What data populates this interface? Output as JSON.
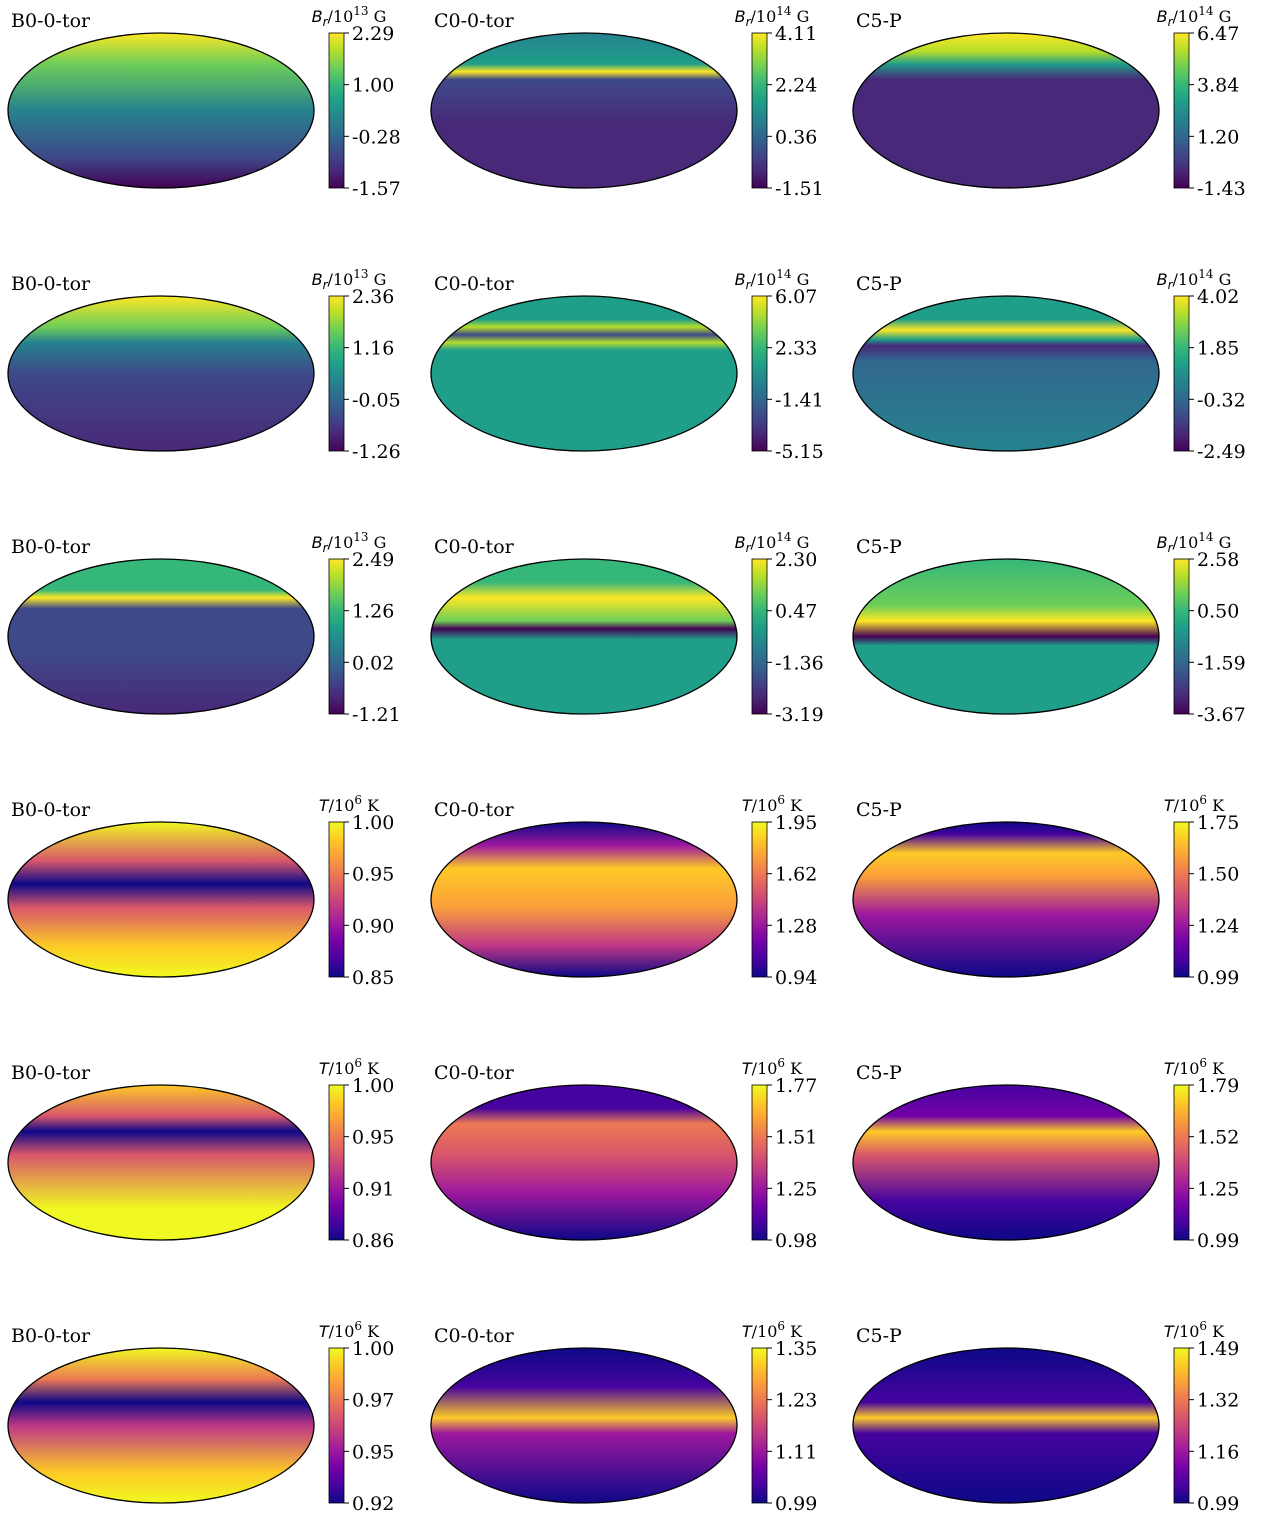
{
  "colors": {
    "viridis": [
      "#440154",
      "#482878",
      "#3e4989",
      "#31688e",
      "#26828e",
      "#1f9e89",
      "#35b779",
      "#6ece58",
      "#b5de2b",
      "#fde725"
    ],
    "plasma": [
      "#0d0887",
      "#46039f",
      "#7201a8",
      "#9c179e",
      "#bd3786",
      "#d8576b",
      "#ed7953",
      "#fb9f3a",
      "#fdca26",
      "#f0f921"
    ],
    "outline": "#000000"
  },
  "chart_data": [
    {
      "type": "heatmap",
      "projection": "mollweide",
      "title": "B0-0-tor",
      "colormap": "viridis",
      "colorbar": {
        "quantity": "B",
        "subscript": "r",
        "unit_base": "10",
        "exponent": "13",
        "unit": "G",
        "ticks": [
          "2.29",
          "1.00",
          "-0.28",
          "-1.57"
        ],
        "range": [
          -1.57,
          2.29
        ]
      }
    },
    {
      "type": "heatmap",
      "projection": "mollweide",
      "title": "C0-0-tor",
      "colormap": "viridis",
      "colorbar": {
        "quantity": "B",
        "subscript": "r",
        "unit_base": "10",
        "exponent": "14",
        "unit": "G",
        "ticks": [
          "4.11",
          "2.24",
          "0.36",
          "-1.51"
        ],
        "range": [
          -1.51,
          4.11
        ]
      }
    },
    {
      "type": "heatmap",
      "projection": "mollweide",
      "title": "C5-P",
      "colormap": "viridis",
      "colorbar": {
        "quantity": "B",
        "subscript": "r",
        "unit_base": "10",
        "exponent": "14",
        "unit": "G",
        "ticks": [
          "6.47",
          "3.84",
          "1.20",
          "-1.43"
        ],
        "range": [
          -1.43,
          6.47
        ]
      }
    },
    {
      "type": "heatmap",
      "projection": "mollweide",
      "title": "B0-0-tor",
      "colormap": "viridis",
      "colorbar": {
        "quantity": "B",
        "subscript": "r",
        "unit_base": "10",
        "exponent": "13",
        "unit": "G",
        "ticks": [
          "2.36",
          "1.16",
          "-0.05",
          "-1.26"
        ],
        "range": [
          -1.26,
          2.36
        ]
      }
    },
    {
      "type": "heatmap",
      "projection": "mollweide",
      "title": "C0-0-tor",
      "colormap": "viridis",
      "colorbar": {
        "quantity": "B",
        "subscript": "r",
        "unit_base": "10",
        "exponent": "14",
        "unit": "G",
        "ticks": [
          "6.07",
          "2.33",
          "-1.41",
          "-5.15"
        ],
        "range": [
          -5.15,
          6.07
        ]
      }
    },
    {
      "type": "heatmap",
      "projection": "mollweide",
      "title": "C5-P",
      "colormap": "viridis",
      "colorbar": {
        "quantity": "B",
        "subscript": "r",
        "unit_base": "10",
        "exponent": "14",
        "unit": "G",
        "ticks": [
          "4.02",
          "1.85",
          "-0.32",
          "-2.49"
        ],
        "range": [
          -2.49,
          4.02
        ]
      }
    },
    {
      "type": "heatmap",
      "projection": "mollweide",
      "title": "B0-0-tor",
      "colormap": "viridis",
      "colorbar": {
        "quantity": "B",
        "subscript": "r",
        "unit_base": "10",
        "exponent": "13",
        "unit": "G",
        "ticks": [
          "2.49",
          "1.26",
          "0.02",
          "-1.21"
        ],
        "range": [
          -1.21,
          2.49
        ]
      }
    },
    {
      "type": "heatmap",
      "projection": "mollweide",
      "title": "C0-0-tor",
      "colormap": "viridis",
      "colorbar": {
        "quantity": "B",
        "subscript": "r",
        "unit_base": "10",
        "exponent": "14",
        "unit": "G",
        "ticks": [
          "2.30",
          "0.47",
          "-1.36",
          "-3.19"
        ],
        "range": [
          -3.19,
          2.3
        ]
      }
    },
    {
      "type": "heatmap",
      "projection": "mollweide",
      "title": "C5-P",
      "colormap": "viridis",
      "colorbar": {
        "quantity": "B",
        "subscript": "r",
        "unit_base": "10",
        "exponent": "14",
        "unit": "G",
        "ticks": [
          "2.58",
          "0.50",
          "-1.59",
          "-3.67"
        ],
        "range": [
          -3.67,
          2.58
        ]
      }
    },
    {
      "type": "heatmap",
      "projection": "mollweide",
      "title": "B0-0-tor",
      "colormap": "plasma",
      "colorbar": {
        "quantity": "T",
        "subscript": "",
        "unit_base": "10",
        "exponent": "6",
        "unit": "K",
        "ticks": [
          "1.00",
          "0.95",
          "0.90",
          "0.85"
        ],
        "range": [
          0.85,
          1.0
        ]
      }
    },
    {
      "type": "heatmap",
      "projection": "mollweide",
      "title": "C0-0-tor",
      "colormap": "plasma",
      "colorbar": {
        "quantity": "T",
        "subscript": "",
        "unit_base": "10",
        "exponent": "6",
        "unit": "K",
        "ticks": [
          "1.95",
          "1.62",
          "1.28",
          "0.94"
        ],
        "range": [
          0.94,
          1.95
        ]
      }
    },
    {
      "type": "heatmap",
      "projection": "mollweide",
      "title": "C5-P",
      "colormap": "plasma",
      "colorbar": {
        "quantity": "T",
        "subscript": "",
        "unit_base": "10",
        "exponent": "6",
        "unit": "K",
        "ticks": [
          "1.75",
          "1.50",
          "1.24",
          "0.99"
        ],
        "range": [
          0.99,
          1.75
        ]
      }
    },
    {
      "type": "heatmap",
      "projection": "mollweide",
      "title": "B0-0-tor",
      "colormap": "plasma",
      "colorbar": {
        "quantity": "T",
        "subscript": "",
        "unit_base": "10",
        "exponent": "6",
        "unit": "K",
        "ticks": [
          "1.00",
          "0.95",
          "0.91",
          "0.86"
        ],
        "range": [
          0.86,
          1.0
        ]
      }
    },
    {
      "type": "heatmap",
      "projection": "mollweide",
      "title": "C0-0-tor",
      "colormap": "plasma",
      "colorbar": {
        "quantity": "T",
        "subscript": "",
        "unit_base": "10",
        "exponent": "6",
        "unit": "K",
        "ticks": [
          "1.77",
          "1.51",
          "1.25",
          "0.98"
        ],
        "range": [
          0.98,
          1.77
        ]
      }
    },
    {
      "type": "heatmap",
      "projection": "mollweide",
      "title": "C5-P",
      "colormap": "plasma",
      "colorbar": {
        "quantity": "T",
        "subscript": "",
        "unit_base": "10",
        "exponent": "6",
        "unit": "K",
        "ticks": [
          "1.79",
          "1.52",
          "1.25",
          "0.99"
        ],
        "range": [
          0.99,
          1.79
        ]
      }
    },
    {
      "type": "heatmap",
      "projection": "mollweide",
      "title": "B0-0-tor",
      "colormap": "plasma",
      "colorbar": {
        "quantity": "T",
        "subscript": "",
        "unit_base": "10",
        "exponent": "6",
        "unit": "K",
        "ticks": [
          "1.00",
          "0.97",
          "0.95",
          "0.92"
        ],
        "range": [
          0.92,
          1.0
        ]
      }
    },
    {
      "type": "heatmap",
      "projection": "mollweide",
      "title": "C0-0-tor",
      "colormap": "plasma",
      "colorbar": {
        "quantity": "T",
        "subscript": "",
        "unit_base": "10",
        "exponent": "6",
        "unit": "K",
        "ticks": [
          "1.35",
          "1.23",
          "1.11",
          "0.99"
        ],
        "range": [
          0.99,
          1.35
        ]
      }
    },
    {
      "type": "heatmap",
      "projection": "mollweide",
      "title": "C5-P",
      "colormap": "plasma",
      "colorbar": {
        "quantity": "T",
        "subscript": "",
        "unit_base": "10",
        "exponent": "6",
        "unit": "K",
        "ticks": [
          "1.49",
          "1.32",
          "1.16",
          "0.99"
        ],
        "range": [
          0.99,
          1.49
        ]
      }
    }
  ]
}
